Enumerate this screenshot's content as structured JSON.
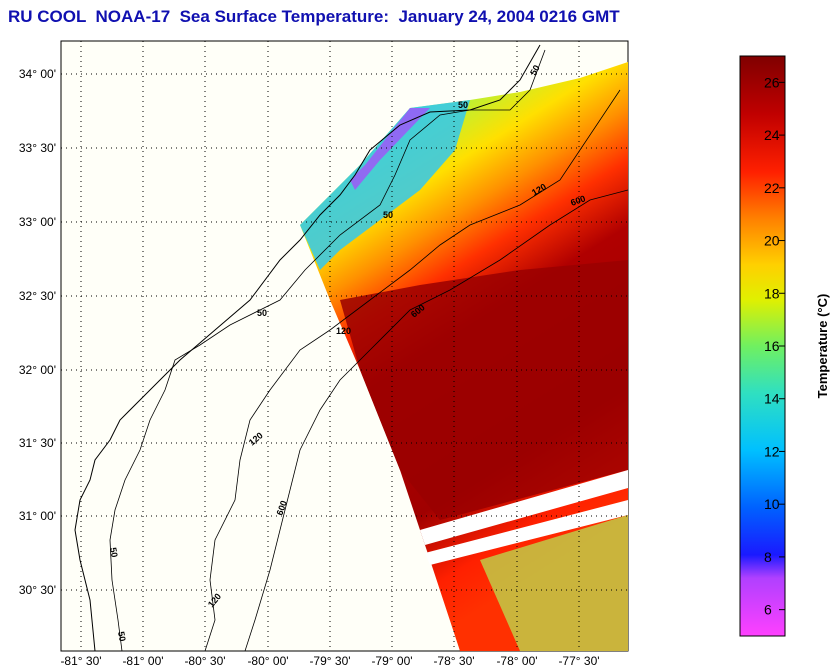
{
  "title": "RU COOL  NOAA-17  Sea Surface Temperature:  January 24, 2004 0216 GMT",
  "map": {
    "lat_labels": [
      "34° 00'",
      "33° 30'",
      "33° 00'",
      "32° 30'",
      "32° 00'",
      "31° 30'",
      "31° 00'",
      "30° 30'"
    ],
    "lon_labels": [
      "-81° 30'",
      "-81° 00'",
      "-80° 30'",
      "-80° 00'",
      "-79° 30'",
      "-79° 00'",
      "-78° 30'",
      "-78° 00'",
      "-77° 30'"
    ],
    "contour_labels": [
      "50",
      "50",
      "50",
      "50",
      "50",
      "50",
      "120",
      "120",
      "120",
      "120",
      "600",
      "600",
      "600"
    ]
  },
  "colorbar": {
    "label": "Temperature (°C)",
    "ticks": [
      6,
      8,
      10,
      12,
      14,
      16,
      18,
      20,
      22,
      24,
      26
    ],
    "range": [
      5,
      27
    ]
  },
  "colors": {
    "title": "#1010b0",
    "ramp": [
      "#ff3cff",
      "#b040ff",
      "#2020ff",
      "#0050ff",
      "#00b0ff",
      "#20e0e0",
      "#40f080",
      "#c0f020",
      "#ffff00",
      "#ffb000",
      "#ff7000",
      "#ff2000",
      "#d00000",
      "#800000"
    ]
  }
}
